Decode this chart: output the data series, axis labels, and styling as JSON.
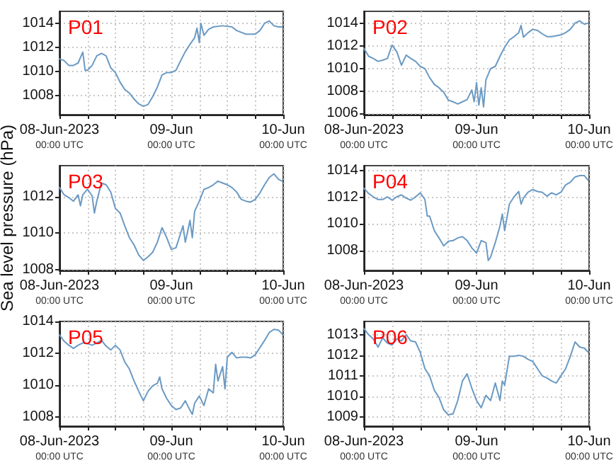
{
  "chart_data": [
    {
      "type": "line",
      "title": "P01",
      "color": "#6b9ac4",
      "grid": true,
      "xlim": [
        "2023-06-08T00:00",
        "2023-06-10T00:00"
      ],
      "ylim": [
        1006.4,
        1015
      ],
      "yticks": [
        1008,
        1010,
        1012,
        1014
      ],
      "xticks": [
        {
          "value": "2023-06-08T00:00",
          "label": "08-Jun-2023\n00:00 UTC"
        },
        {
          "value": "2023-06-08T06:00",
          "label": null
        },
        {
          "value": "2023-06-08T12:00",
          "label": null
        },
        {
          "value": "2023-06-08T18:00",
          "label": null
        },
        {
          "value": "2023-06-09T00:00",
          "label": "09-Jun\n00:00 UTC"
        },
        {
          "value": "2023-06-09T06:00",
          "label": null
        },
        {
          "value": "2023-06-09T12:00",
          "label": null
        },
        {
          "value": "2023-06-09T18:00",
          "label": null
        },
        {
          "value": "2023-06-10T00:00",
          "label": "10-Jun\n00:00 UTC"
        }
      ],
      "x": [
        "2023-06-08T00:00",
        "2023-06-08T01:00",
        "2023-06-08T02:00",
        "2023-06-08T03:00",
        "2023-06-08T04:00",
        "2023-06-08T05:00",
        "2023-06-08T05:30",
        "2023-06-08T06:00",
        "2023-06-08T07:00",
        "2023-06-08T08:00",
        "2023-06-08T09:00",
        "2023-06-08T10:00",
        "2023-06-08T11:00",
        "2023-06-08T12:00",
        "2023-06-08T13:00",
        "2023-06-08T14:00",
        "2023-06-08T15:00",
        "2023-06-08T16:00",
        "2023-06-08T17:00",
        "2023-06-08T18:00",
        "2023-06-08T19:00",
        "2023-06-08T20:00",
        "2023-06-08T21:00",
        "2023-06-08T22:00",
        "2023-06-08T23:00",
        "2023-06-09T00:00",
        "2023-06-09T01:00",
        "2023-06-09T02:00",
        "2023-06-09T03:00",
        "2023-06-09T04:00",
        "2023-06-09T05:00",
        "2023-06-09T05:30",
        "2023-06-09T06:00",
        "2023-06-09T06:20",
        "2023-06-09T07:00",
        "2023-06-09T08:00",
        "2023-06-09T09:00",
        "2023-06-09T11:00",
        "2023-06-09T13:00",
        "2023-06-09T14:00",
        "2023-06-09T16:00",
        "2023-06-09T18:00",
        "2023-06-09T19:00",
        "2023-06-09T20:00",
        "2023-06-09T21:00",
        "2023-06-09T22:00",
        "2023-06-09T23:00",
        "2023-06-09T23:48"
      ],
      "values": [
        1011.05,
        1010.9,
        1010.5,
        1010.5,
        1010.7,
        1011.6,
        1010.1,
        1010.1,
        1010.5,
        1011.3,
        1011.5,
        1011.3,
        1010.3,
        1009.9,
        1009.1,
        1008.5,
        1008.2,
        1007.7,
        1007.3,
        1007.1,
        1007.25,
        1007.9,
        1008.7,
        1009.7,
        1009.9,
        1009.9,
        1010.1,
        1010.9,
        1011.65,
        1012.25,
        1012.8,
        1013.6,
        1012.4,
        1014,
        1013.0,
        1013.5,
        1013.7,
        1013.8,
        1013.7,
        1013.4,
        1013.1,
        1013.1,
        1013.4,
        1014,
        1014.2,
        1013.8,
        1013.7,
        1013.7
      ]
    },
    {
      "type": "line",
      "title": "P02",
      "color": "#6b9ac4",
      "grid": true,
      "xlim": [
        "2023-06-08T00:00",
        "2023-06-10T00:00"
      ],
      "ylim": [
        1005.9,
        1015.1
      ],
      "yticks": [
        1006,
        1008,
        1010,
        1012,
        1014
      ],
      "xticks": [
        {
          "value": "2023-06-08T00:00",
          "label": "08-Jun-2023\n00:00 UTC"
        },
        {
          "value": "2023-06-08T06:00",
          "label": null
        },
        {
          "value": "2023-06-08T12:00",
          "label": null
        },
        {
          "value": "2023-06-08T18:00",
          "label": null
        },
        {
          "value": "2023-06-09T00:00",
          "label": "09-Jun\n00:00 UTC"
        },
        {
          "value": "2023-06-09T06:00",
          "label": null
        },
        {
          "value": "2023-06-09T12:00",
          "label": null
        },
        {
          "value": "2023-06-09T18:00",
          "label": null
        },
        {
          "value": "2023-06-10T00:00",
          "label": "10-Jun\n00:00 UTC"
        }
      ],
      "x": [
        "2023-06-08T00:00",
        "2023-06-08T01:00",
        "2023-06-08T02:00",
        "2023-06-08T03:00",
        "2023-06-08T04:00",
        "2023-06-08T05:00",
        "2023-06-08T06:00",
        "2023-06-08T07:00",
        "2023-06-08T08:00",
        "2023-06-08T09:00",
        "2023-06-08T10:00",
        "2023-06-08T11:00",
        "2023-06-08T12:00",
        "2023-06-08T13:00",
        "2023-06-08T14:00",
        "2023-06-08T15:00",
        "2023-06-08T16:00",
        "2023-06-08T17:00",
        "2023-06-08T18:00",
        "2023-06-08T19:00",
        "2023-06-08T20:00",
        "2023-06-08T21:00",
        "2023-06-08T22:00",
        "2023-06-08T23:00",
        "2023-06-08T23:30",
        "2023-06-09T00:00",
        "2023-06-09T00:30",
        "2023-06-09T01:00",
        "2023-06-09T01:30",
        "2023-06-09T02:00",
        "2023-06-09T03:00",
        "2023-06-09T04:00",
        "2023-06-09T05:00",
        "2023-06-09T06:00",
        "2023-06-09T07:00",
        "2023-06-09T08:00",
        "2023-06-09T09:00",
        "2023-06-09T09:30",
        "2023-06-09T10:00",
        "2023-06-09T11:00",
        "2023-06-09T12:00",
        "2023-06-09T13:00",
        "2023-06-09T14:00",
        "2023-06-09T15:00",
        "2023-06-09T16:00",
        "2023-06-09T18:00",
        "2023-06-09T19:00",
        "2023-06-09T20:00",
        "2023-06-09T21:00",
        "2023-06-09T22:00",
        "2023-06-09T23:00",
        "2023-06-09T23:48"
      ],
      "values": [
        1011.8,
        1011.1,
        1010.9,
        1010.65,
        1010.75,
        1010.9,
        1012.1,
        1011.5,
        1010.3,
        1011.2,
        1010.9,
        1010.65,
        1010.2,
        1010.0,
        1009.2,
        1008.6,
        1008.3,
        1007.9,
        1007.2,
        1007.05,
        1006.85,
        1007.05,
        1007.25,
        1008.1,
        1007.05,
        1008.75,
        1006.75,
        1008.3,
        1006.6,
        1009.0,
        1010.0,
        1010.2,
        1011.1,
        1011.9,
        1012.55,
        1012.85,
        1013.2,
        1013.85,
        1012.8,
        1013.2,
        1013.5,
        1013.4,
        1013.1,
        1012.85,
        1012.85,
        1013.0,
        1013.2,
        1013.5,
        1014.05,
        1014.25,
        1013.95,
        1014.05
      ]
    },
    {
      "type": "line",
      "title": "P03",
      "ylabel": "Sea level pressure (hPa)",
      "color": "#6b9ac4",
      "grid": true,
      "xlim": [
        "2023-06-08T00:00",
        "2023-06-10T00:00"
      ],
      "ylim": [
        1007.95,
        1013.7
      ],
      "yticks": [
        1008,
        1010,
        1012
      ],
      "xticks": [
        {
          "value": "2023-06-08T00:00",
          "label": "08-Jun-2023\n00:00 UTC"
        },
        {
          "value": "2023-06-08T06:00",
          "label": null
        },
        {
          "value": "2023-06-08T12:00",
          "label": null
        },
        {
          "value": "2023-06-08T18:00",
          "label": null
        },
        {
          "value": "2023-06-09T00:00",
          "label": "09-Jun\n00:00 UTC"
        },
        {
          "value": "2023-06-09T06:00",
          "label": null
        },
        {
          "value": "2023-06-09T12:00",
          "label": null
        },
        {
          "value": "2023-06-09T18:00",
          "label": null
        },
        {
          "value": "2023-06-10T00:00",
          "label": "10-Jun\n00:00 UTC"
        }
      ],
      "x": [
        "2023-06-08T00:00",
        "2023-06-08T01:00",
        "2023-06-08T02:00",
        "2023-06-08T03:00",
        "2023-06-08T04:00",
        "2023-06-08T04:30",
        "2023-06-08T05:00",
        "2023-06-08T06:00",
        "2023-06-08T07:00",
        "2023-06-08T07:30",
        "2023-06-08T08:00",
        "2023-06-08T09:00",
        "2023-06-08T10:00",
        "2023-06-08T11:00",
        "2023-06-08T12:00",
        "2023-06-08T13:00",
        "2023-06-08T14:00",
        "2023-06-08T15:00",
        "2023-06-08T16:00",
        "2023-06-08T17:00",
        "2023-06-08T18:00",
        "2023-06-08T19:00",
        "2023-06-08T20:00",
        "2023-06-08T21:00",
        "2023-06-08T22:00",
        "2023-06-08T23:00",
        "2023-06-09T00:00",
        "2023-06-09T01:00",
        "2023-06-09T02:00",
        "2023-06-09T02:30",
        "2023-06-09T03:00",
        "2023-06-09T04:00",
        "2023-06-09T04:30",
        "2023-06-09T05:00",
        "2023-06-09T06:00",
        "2023-06-09T07:00",
        "2023-06-09T08:00",
        "2023-06-09T09:00",
        "2023-06-09T10:00",
        "2023-06-09T11:00",
        "2023-06-09T12:00",
        "2023-06-09T13:00",
        "2023-06-09T14:00",
        "2023-06-09T15:00",
        "2023-06-09T16:00",
        "2023-06-09T17:00",
        "2023-06-09T18:00",
        "2023-06-09T19:00",
        "2023-06-09T20:00",
        "2023-06-09T21:00",
        "2023-06-09T22:00",
        "2023-06-09T23:00",
        "2023-06-09T23:48"
      ],
      "values": [
        1012.5,
        1012.1,
        1011.95,
        1011.75,
        1012.1,
        1011.5,
        1012.1,
        1012.4,
        1012.05,
        1011.1,
        1011.75,
        1012.75,
        1012.65,
        1012.25,
        1011.35,
        1011.1,
        1010.4,
        1009.75,
        1009.35,
        1008.8,
        1008.5,
        1008.7,
        1008.95,
        1009.5,
        1010.3,
        1009.75,
        1009.1,
        1009.2,
        1010.0,
        1010.4,
        1009.5,
        1010.7,
        1009.75,
        1011.2,
        1011.75,
        1012.4,
        1012.5,
        1012.65,
        1012.85,
        1012.75,
        1012.65,
        1012.5,
        1012.25,
        1011.85,
        1011.75,
        1011.7,
        1011.85,
        1012.2,
        1012.65,
        1013.05,
        1013.25,
        1012.95,
        1012.85
      ]
    },
    {
      "type": "line",
      "title": "P04",
      "color": "#6b9ac4",
      "grid": true,
      "xlim": [
        "2023-06-08T00:00",
        "2023-06-10T00:00"
      ],
      "ylim": [
        1006.5,
        1014.4
      ],
      "yticks": [
        1008,
        1010,
        1012,
        1014
      ],
      "xticks": [
        {
          "value": "2023-06-08T00:00",
          "label": "08-Jun-2023\n00:00 UTC"
        },
        {
          "value": "2023-06-08T06:00",
          "label": null
        },
        {
          "value": "2023-06-08T12:00",
          "label": null
        },
        {
          "value": "2023-06-08T18:00",
          "label": null
        },
        {
          "value": "2023-06-09T00:00",
          "label": "09-Jun\n00:00 UTC"
        },
        {
          "value": "2023-06-09T06:00",
          "label": null
        },
        {
          "value": "2023-06-09T12:00",
          "label": null
        },
        {
          "value": "2023-06-09T18:00",
          "label": null
        },
        {
          "value": "2023-06-10T00:00",
          "label": "10-Jun\n00:00 UTC"
        }
      ],
      "x": [
        "2023-06-08T00:00",
        "2023-06-08T01:00",
        "2023-06-08T02:00",
        "2023-06-08T03:00",
        "2023-06-08T04:00",
        "2023-06-08T05:00",
        "2023-06-08T06:00",
        "2023-06-08T07:00",
        "2023-06-08T08:00",
        "2023-06-08T09:00",
        "2023-06-08T10:00",
        "2023-06-08T11:00",
        "2023-06-08T12:00",
        "2023-06-08T13:00",
        "2023-06-08T13:30",
        "2023-06-08T14:00",
        "2023-06-08T15:00",
        "2023-06-08T16:00",
        "2023-06-08T17:00",
        "2023-06-08T18:00",
        "2023-06-08T19:00",
        "2023-06-08T20:00",
        "2023-06-08T21:00",
        "2023-06-08T22:00",
        "2023-06-08T23:00",
        "2023-06-09T00:00",
        "2023-06-09T01:00",
        "2023-06-09T02:00",
        "2023-06-09T02:30",
        "2023-06-09T03:00",
        "2023-06-09T04:00",
        "2023-06-09T05:00",
        "2023-06-09T05:30",
        "2023-06-09T06:00",
        "2023-06-09T07:00",
        "2023-06-09T08:00",
        "2023-06-09T09:00",
        "2023-06-09T09:30",
        "2023-06-09T10:00",
        "2023-06-09T11:00",
        "2023-06-09T12:00",
        "2023-06-09T13:00",
        "2023-06-09T14:00",
        "2023-06-09T15:00",
        "2023-06-09T16:00",
        "2023-06-09T17:00",
        "2023-06-09T18:00",
        "2023-06-09T19:00",
        "2023-06-09T20:00",
        "2023-06-09T21:00",
        "2023-06-09T22:00",
        "2023-06-09T23:00",
        "2023-06-09T23:48"
      ],
      "values": [
        1012.7,
        1012.3,
        1012.05,
        1011.85,
        1011.85,
        1012.05,
        1011.8,
        1012.05,
        1012.2,
        1011.95,
        1011.8,
        1012.05,
        1012.35,
        1011.85,
        1010.6,
        1010.6,
        1009.5,
        1008.95,
        1008.35,
        1008.7,
        1008.75,
        1008.95,
        1009.05,
        1008.75,
        1008.2,
        1007.8,
        1008.75,
        1008.6,
        1007.25,
        1007.5,
        1008.6,
        1009.85,
        1010.75,
        1009.5,
        1011.5,
        1012.05,
        1012.45,
        1011.5,
        1011.95,
        1012.4,
        1012.6,
        1012.45,
        1012.4,
        1012.1,
        1012.35,
        1012.2,
        1012.4,
        1012.95,
        1013.15,
        1013.55,
        1013.65,
        1013.65,
        1013.3
      ]
    },
    {
      "type": "line",
      "title": "P05",
      "color": "#6b9ac4",
      "grid": true,
      "xlim": [
        "2023-06-08T00:00",
        "2023-06-10T00:00"
      ],
      "ylim": [
        1007.4,
        1014
      ],
      "yticks": [
        1008,
        1010,
        1012,
        1014
      ],
      "xticks": [
        {
          "value": "2023-06-08T00:00",
          "label": "08-Jun-2023\n00:00 UTC"
        },
        {
          "value": "2023-06-08T06:00",
          "label": null
        },
        {
          "value": "2023-06-08T12:00",
          "label": null
        },
        {
          "value": "2023-06-08T18:00",
          "label": null
        },
        {
          "value": "2023-06-09T00:00",
          "label": "09-Jun\n00:00 UTC"
        },
        {
          "value": "2023-06-09T06:00",
          "label": null
        },
        {
          "value": "2023-06-09T12:00",
          "label": null
        },
        {
          "value": "2023-06-09T18:00",
          "label": null
        },
        {
          "value": "2023-06-10T00:00",
          "label": "10-Jun\n00:00 UTC"
        }
      ],
      "x": [
        "2023-06-08T00:00",
        "2023-06-08T01:00",
        "2023-06-08T02:00",
        "2023-06-08T03:00",
        "2023-06-08T04:00",
        "2023-06-08T05:00",
        "2023-06-08T06:00",
        "2023-06-08T07:00",
        "2023-06-08T08:00",
        "2023-06-08T09:00",
        "2023-06-08T10:00",
        "2023-06-08T11:00",
        "2023-06-08T12:00",
        "2023-06-08T13:00",
        "2023-06-08T14:00",
        "2023-06-08T15:00",
        "2023-06-08T16:00",
        "2023-06-08T17:00",
        "2023-06-08T18:00",
        "2023-06-08T19:00",
        "2023-06-08T20:00",
        "2023-06-08T21:00",
        "2023-06-08T21:30",
        "2023-06-08T22:00",
        "2023-06-08T23:00",
        "2023-06-09T00:00",
        "2023-06-09T01:00",
        "2023-06-09T02:00",
        "2023-06-09T03:00",
        "2023-06-09T04:00",
        "2023-06-09T04:30",
        "2023-06-09T05:00",
        "2023-06-09T06:00",
        "2023-06-09T07:00",
        "2023-06-09T08:00",
        "2023-06-09T09:00",
        "2023-06-09T09:30",
        "2023-06-09T10:00",
        "2023-06-09T11:00",
        "2023-06-09T11:30",
        "2023-06-09T12:00",
        "2023-06-09T13:00",
        "2023-06-09T14:00",
        "2023-06-09T15:00",
        "2023-06-09T16:00",
        "2023-06-09T17:00",
        "2023-06-09T18:00",
        "2023-06-09T19:00",
        "2023-06-09T20:00",
        "2023-06-09T21:00",
        "2023-06-09T22:00",
        "2023-06-09T23:00",
        "2023-06-09T23:48"
      ],
      "values": [
        1013.15,
        1012.75,
        1012.5,
        1012.3,
        1012.5,
        1012.65,
        1012.6,
        1012.5,
        1012.65,
        1012.8,
        1012.45,
        1012.2,
        1012.5,
        1012.2,
        1011.45,
        1011.0,
        1010.25,
        1009.6,
        1009.0,
        1009.6,
        1009.95,
        1010.1,
        1010.5,
        1009.75,
        1009.15,
        1008.7,
        1008.45,
        1008.55,
        1009.0,
        1008.4,
        1008.15,
        1008.85,
        1009.3,
        1008.7,
        1009.75,
        1009.5,
        1011.3,
        1010.25,
        1011.15,
        1009.75,
        1011.75,
        1012.05,
        1011.7,
        1011.75,
        1011.75,
        1011.7,
        1011.9,
        1012.35,
        1012.8,
        1013.3,
        1013.5,
        1013.45,
        1013.2
      ]
    },
    {
      "type": "line",
      "title": "P06",
      "color": "#6b9ac4",
      "grid": true,
      "xlim": [
        "2023-06-08T00:00",
        "2023-06-10T00:00"
      ],
      "ylim": [
        1008.55,
        1013.65
      ],
      "yticks": [
        1009,
        1010,
        1011,
        1012,
        1013
      ],
      "xticks": [
        {
          "value": "2023-06-08T00:00",
          "label": "08-Jun-2023\n00:00 UTC"
        },
        {
          "value": "2023-06-08T06:00",
          "label": null
        },
        {
          "value": "2023-06-08T12:00",
          "label": null
        },
        {
          "value": "2023-06-08T18:00",
          "label": null
        },
        {
          "value": "2023-06-09T00:00",
          "label": "09-Jun\n00:00 UTC"
        },
        {
          "value": "2023-06-09T06:00",
          "label": null
        },
        {
          "value": "2023-06-09T12:00",
          "label": null
        },
        {
          "value": "2023-06-09T18:00",
          "label": null
        },
        {
          "value": "2023-06-10T00:00",
          "label": "10-Jun\n00:00 UTC"
        }
      ],
      "x": [
        "2023-06-08T00:00",
        "2023-06-08T01:00",
        "2023-06-08T02:00",
        "2023-06-08T03:00",
        "2023-06-08T04:00",
        "2023-06-08T05:00",
        "2023-06-08T06:00",
        "2023-06-08T07:00",
        "2023-06-08T08:00",
        "2023-06-08T09:00",
        "2023-06-08T10:00",
        "2023-06-08T11:00",
        "2023-06-08T12:00",
        "2023-06-08T13:00",
        "2023-06-08T14:00",
        "2023-06-08T15:00",
        "2023-06-08T16:00",
        "2023-06-08T17:00",
        "2023-06-08T18:00",
        "2023-06-08T19:00",
        "2023-06-08T20:00",
        "2023-06-08T21:00",
        "2023-06-08T22:00",
        "2023-06-08T23:00",
        "2023-06-09T00:00",
        "2023-06-09T01:00",
        "2023-06-09T02:00",
        "2023-06-09T03:00",
        "2023-06-09T04:00",
        "2023-06-09T05:00",
        "2023-06-09T05:30",
        "2023-06-09T06:00",
        "2023-06-09T07:00",
        "2023-06-09T08:00",
        "2023-06-09T09:00",
        "2023-06-09T10:00",
        "2023-06-09T11:00",
        "2023-06-09T12:00",
        "2023-06-09T13:00",
        "2023-06-09T14:00",
        "2023-06-09T15:00",
        "2023-06-09T16:00",
        "2023-06-09T17:00",
        "2023-06-09T18:00",
        "2023-06-09T19:00",
        "2023-06-09T20:00",
        "2023-06-09T21:00",
        "2023-06-09T22:00",
        "2023-06-09T23:00",
        "2023-06-09T23:48"
      ],
      "values": [
        1013.3,
        1013.0,
        1012.8,
        1012.4,
        1012.85,
        1012.6,
        1012.5,
        1012.8,
        1012.7,
        1013.0,
        1012.7,
        1012.65,
        1012.15,
        1011.35,
        1011.0,
        1010.3,
        1009.95,
        1009.35,
        1009.1,
        1009.15,
        1009.8,
        1010.75,
        1011.1,
        1010.4,
        1009.8,
        1009.45,
        1010.05,
        1009.8,
        1010.65,
        1009.8,
        1010.75,
        1010.55,
        1011.95,
        1011.95,
        1012.0,
        1011.95,
        1011.8,
        1011.7,
        1011.35,
        1011.0,
        1010.9,
        1010.75,
        1010.65,
        1011.0,
        1011.35,
        1011.95,
        1012.65,
        1012.4,
        1012.35,
        1012.15
      ]
    }
  ]
}
